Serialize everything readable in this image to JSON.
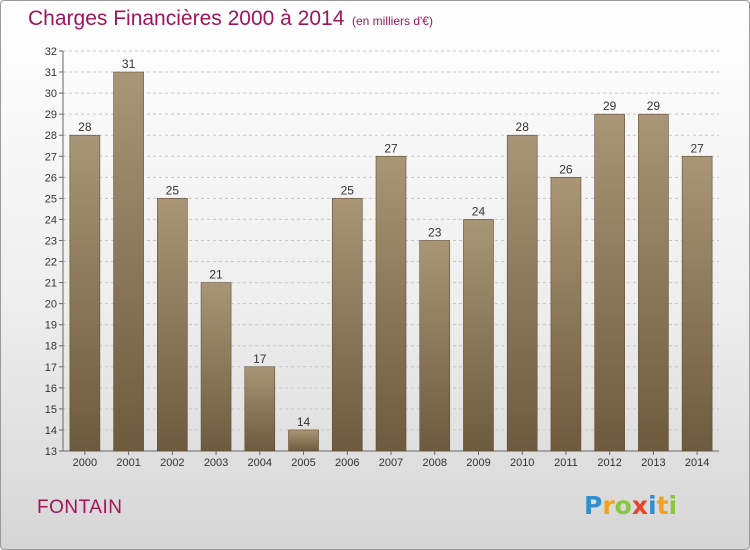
{
  "header": {
    "title": "Charges Financières 2000 à 2014",
    "subtitle": "(en milliers d'€)"
  },
  "footer": {
    "commune": "FONTAIN",
    "logo_text": "Proxiti",
    "logo_letters": [
      {
        "ch": "P",
        "color": "#2f8fd3"
      },
      {
        "ch": "r",
        "color": "#f2a21b"
      },
      {
        "ch": "o",
        "color": "#8cc63f"
      },
      {
        "ch": "x",
        "color": "#e8432d"
      },
      {
        "ch": "i",
        "color": "#2f8fd3"
      },
      {
        "ch": "t",
        "color": "#f2a21b"
      },
      {
        "ch": "i",
        "color": "#8cc63f"
      }
    ]
  },
  "colors": {
    "title": "#a0155a",
    "bar_top": "#a89676",
    "bar_bottom": "#6e5a3e",
    "grid": "#c8c8c8"
  },
  "chart_data": {
    "type": "bar",
    "title": "Charges Financières 2000 à 2014",
    "subtitle": "(en milliers d'€)",
    "categories": [
      "2000",
      "2001",
      "2002",
      "2003",
      "2004",
      "2005",
      "2006",
      "2007",
      "2008",
      "2009",
      "2010",
      "2011",
      "2012",
      "2013",
      "2014"
    ],
    "values": [
      28,
      31,
      25,
      21,
      17,
      14,
      25,
      27,
      23,
      24,
      28,
      26,
      29,
      29,
      27
    ],
    "ylim": [
      13,
      32
    ],
    "yticks": [
      13,
      14,
      15,
      16,
      17,
      18,
      19,
      20,
      21,
      22,
      23,
      24,
      25,
      26,
      27,
      28,
      29,
      30,
      31,
      32
    ],
    "grid": true,
    "legend": "none"
  }
}
